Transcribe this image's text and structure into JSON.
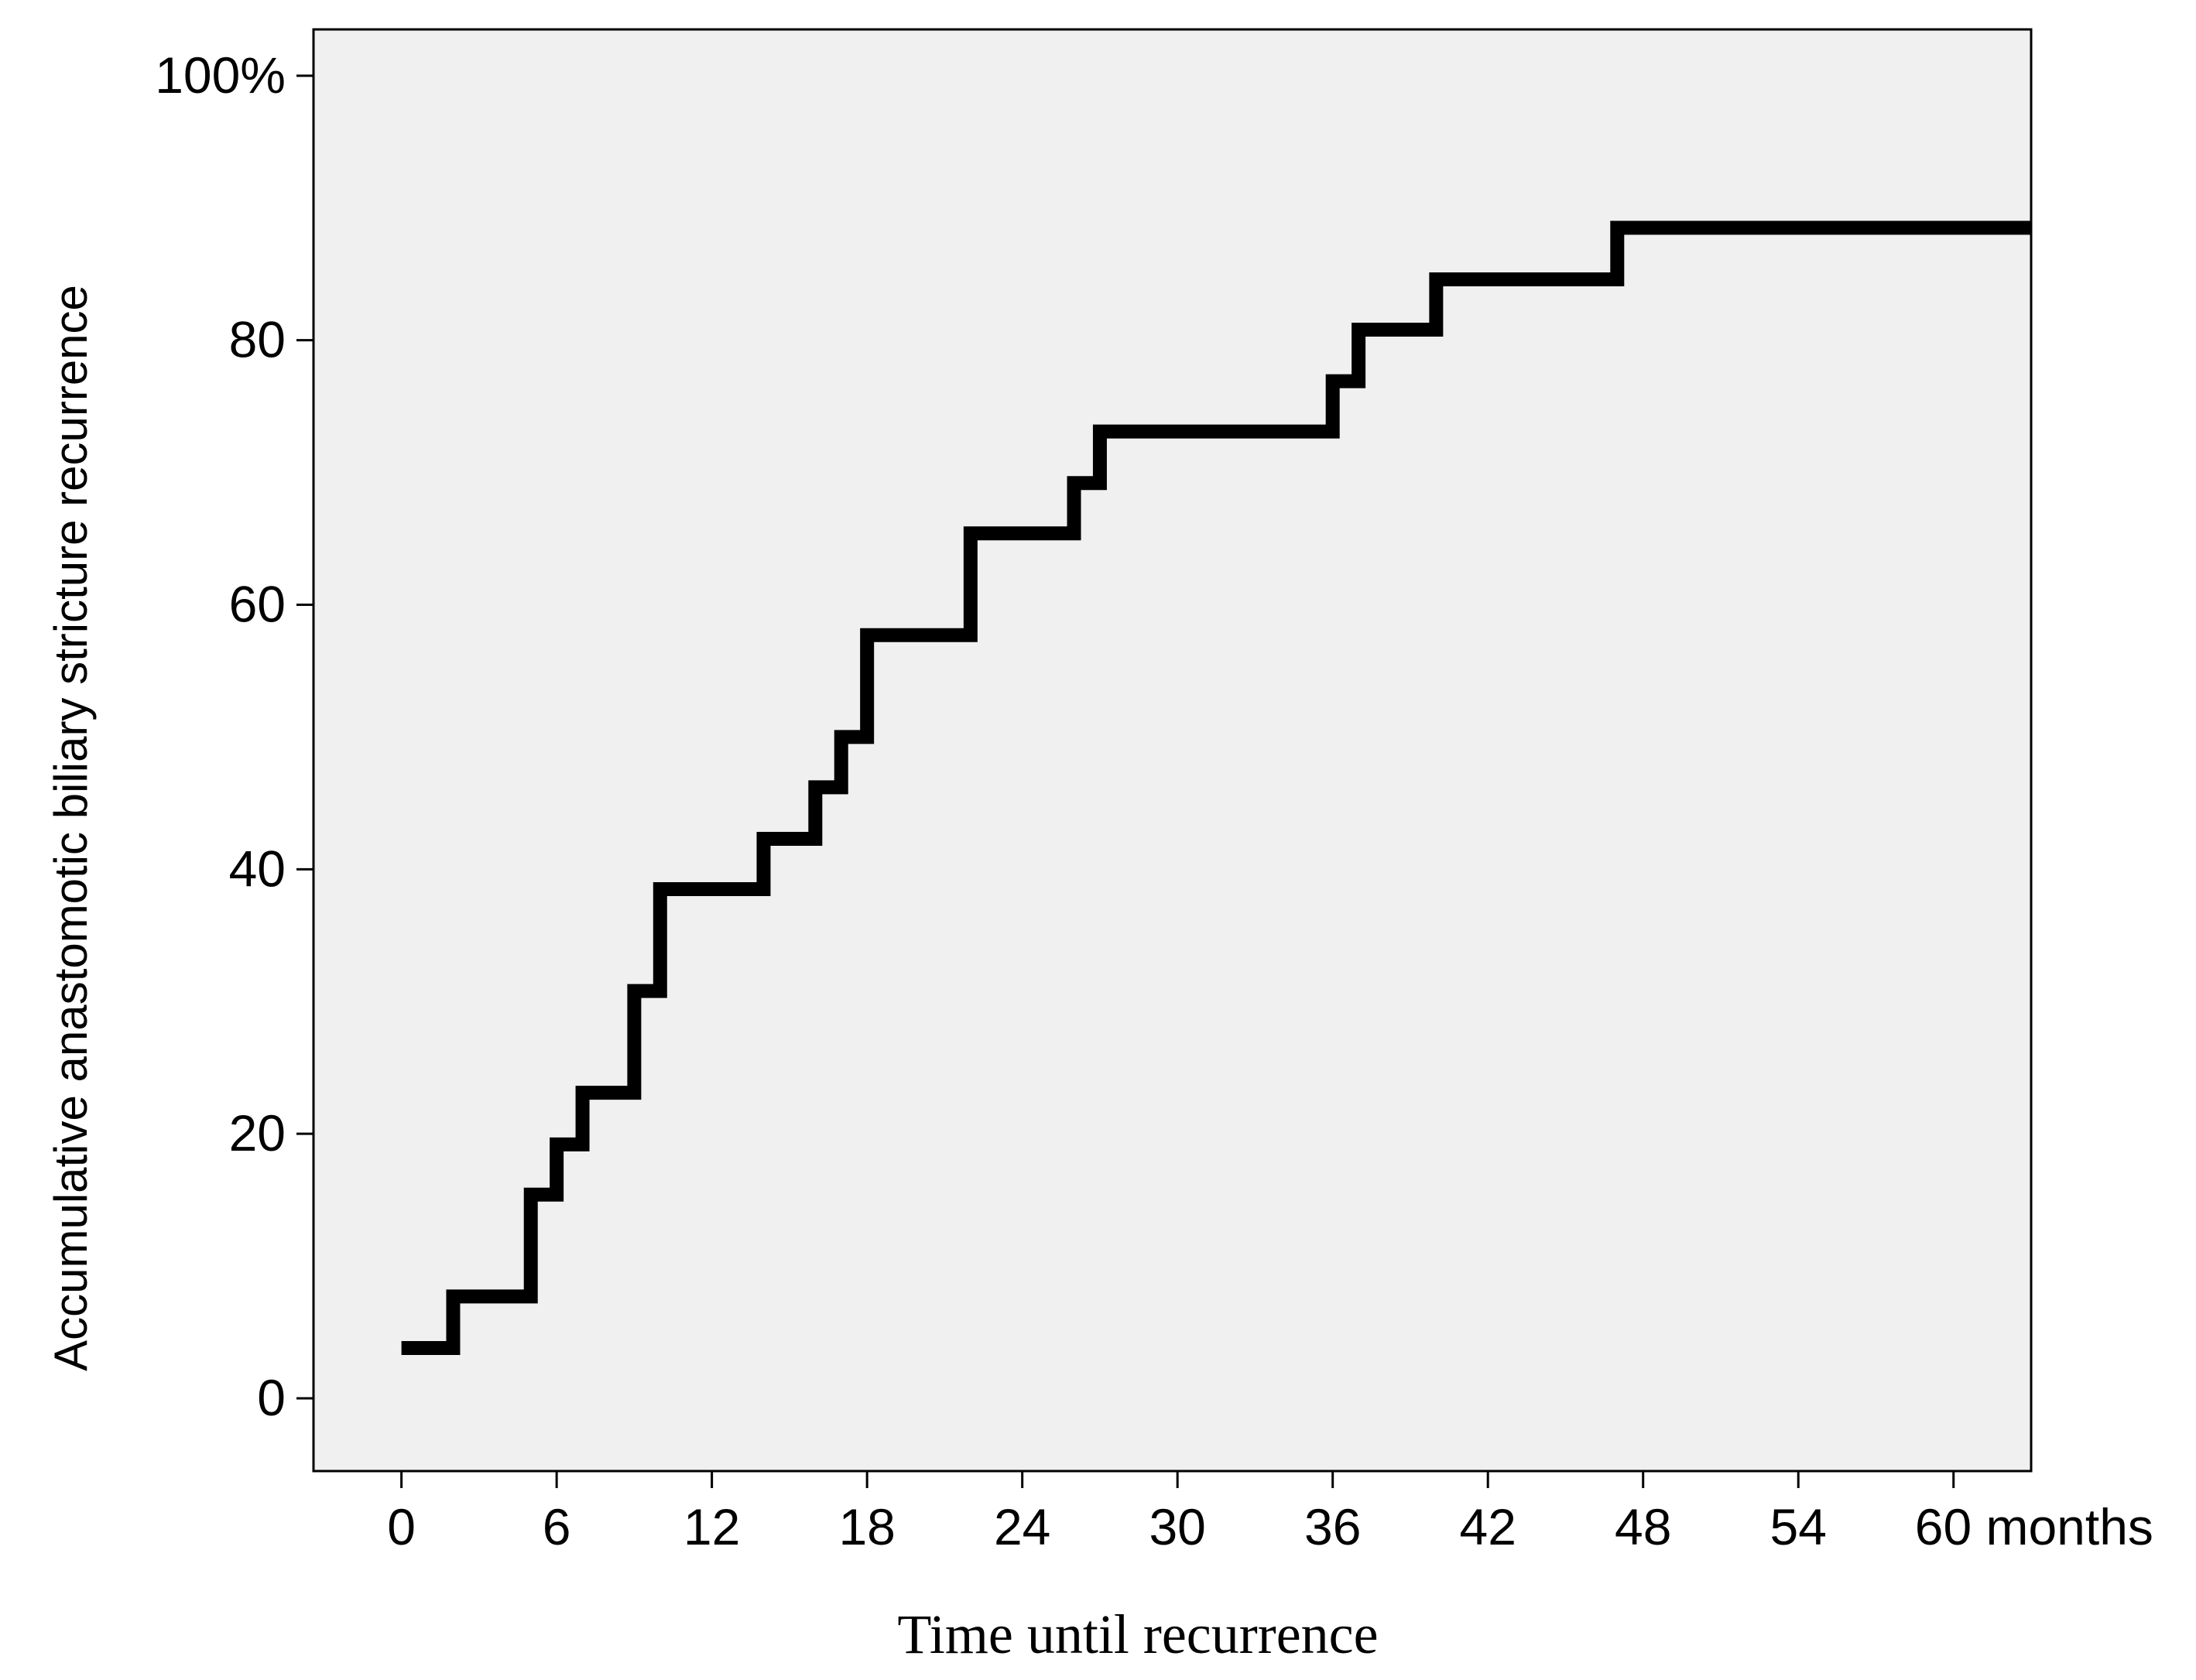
{
  "chart_data": {
    "type": "line",
    "step": true,
    "xlabel": "Time until recurrence",
    "ylabel": "Accumulative anastomotic biliary stricture recurrence",
    "x_ticks": [
      {
        "value": 0,
        "label": "0"
      },
      {
        "value": 6,
        "label": "6"
      },
      {
        "value": 12,
        "label": "12"
      },
      {
        "value": 18,
        "label": "18"
      },
      {
        "value": 24,
        "label": "24"
      },
      {
        "value": 30,
        "label": "30"
      },
      {
        "value": 36,
        "label": "36"
      },
      {
        "value": 42,
        "label": "42"
      },
      {
        "value": 48,
        "label": "48"
      },
      {
        "value": 54,
        "label": "54"
      },
      {
        "value": 60,
        "label": "60 months"
      }
    ],
    "y_ticks": [
      {
        "value": 0,
        "label": "0"
      },
      {
        "value": 20,
        "label": "20"
      },
      {
        "value": 40,
        "label": "40"
      },
      {
        "value": 60,
        "label": "60"
      },
      {
        "value": 80,
        "label": "80"
      },
      {
        "value": 100,
        "label": "100%"
      }
    ],
    "xlim": [
      -3.4,
      63
    ],
    "ylim": [
      -5.5,
      103.5
    ],
    "grid": false,
    "colors": {
      "plot_background": "#f0f0f0",
      "line": "#000000",
      "frame": "#000000"
    },
    "series": [
      {
        "x": [
          0,
          2,
          5,
          6,
          7,
          9,
          10,
          14,
          16,
          17,
          18,
          22,
          26,
          27,
          36,
          37,
          40,
          47,
          63
        ],
        "y": [
          3.8,
          7.7,
          15.4,
          19.2,
          23.1,
          30.8,
          38.5,
          42.3,
          46.2,
          50.0,
          57.7,
          65.4,
          69.2,
          73.1,
          76.9,
          80.8,
          84.6,
          88.5,
          88.5
        ]
      }
    ]
  }
}
